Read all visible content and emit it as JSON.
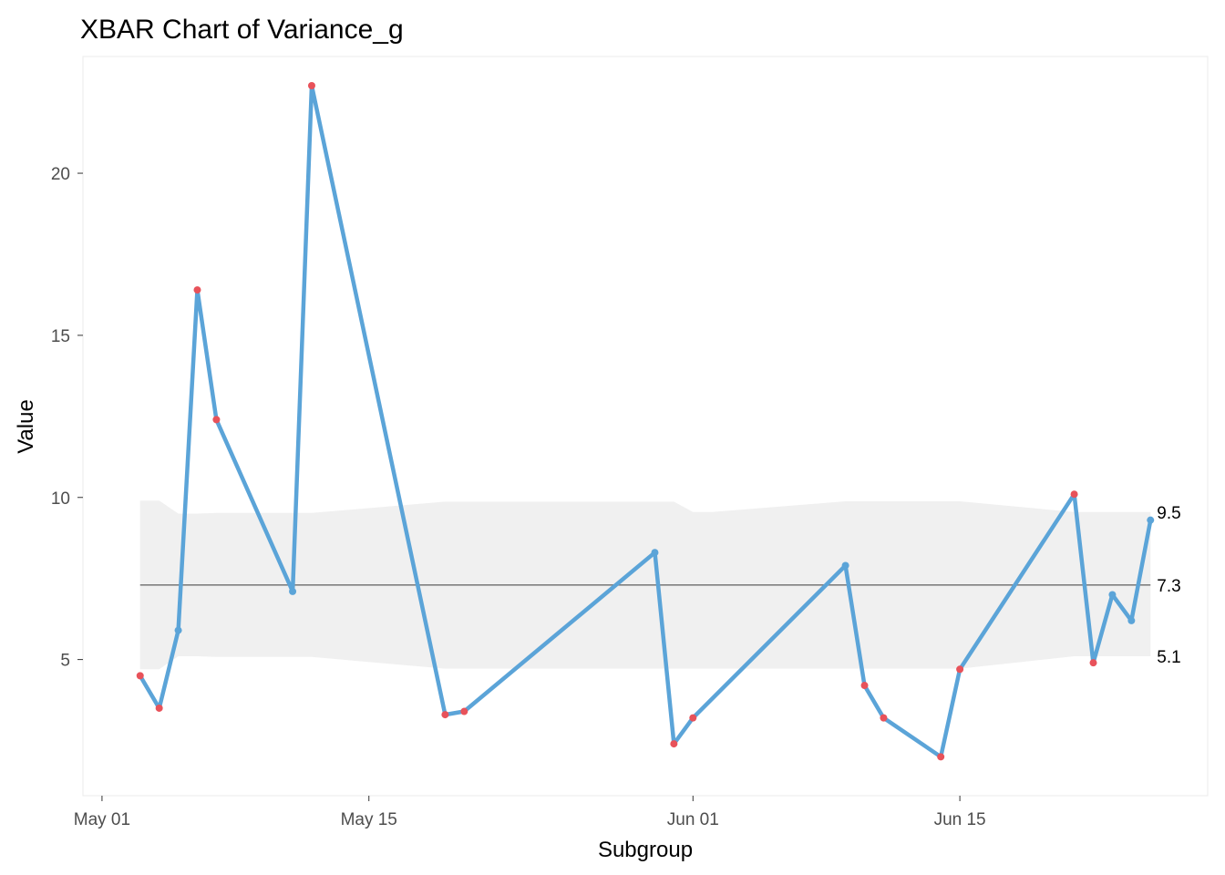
{
  "chart_data": {
    "type": "line",
    "title": "XBAR Chart of Variance_g",
    "xlabel": "Subgroup",
    "ylabel": "Value",
    "x_axis_type": "date",
    "xlim": [
      "2024-04-30",
      "2024-06-28"
    ],
    "ylim": [
      0.8,
      23.6
    ],
    "x_ticks": [
      {
        "date": "2024-05-01",
        "label": "May 01"
      },
      {
        "date": "2024-05-15",
        "label": "May 15"
      },
      {
        "date": "2024-06-01",
        "label": "Jun 01"
      },
      {
        "date": "2024-06-15",
        "label": "Jun 15"
      }
    ],
    "y_ticks": [
      {
        "value": 5,
        "label": "5"
      },
      {
        "value": 10,
        "label": "10"
      },
      {
        "value": 15,
        "label": "15"
      },
      {
        "value": 20,
        "label": "20"
      }
    ],
    "grid": false,
    "center_line": {
      "value": 7.3,
      "label": "7.3"
    },
    "ucl_label": "9.5",
    "lcl_label": "5.1",
    "control_limits": {
      "dates": [
        "2024-05-03",
        "2024-05-04",
        "2024-05-05",
        "2024-05-06",
        "2024-05-07",
        "2024-05-11",
        "2024-05-12",
        "2024-05-19",
        "2024-05-20",
        "2024-05-30",
        "2024-05-31",
        "2024-06-01",
        "2024-06-02",
        "2024-06-09",
        "2024-06-10",
        "2024-06-11",
        "2024-06-14",
        "2024-06-15",
        "2024-06-21",
        "2024-06-22",
        "2024-06-23",
        "2024-06-24",
        "2024-06-25"
      ],
      "ucl": [
        9.9,
        9.9,
        9.5,
        9.5,
        9.52,
        9.52,
        9.52,
        9.87,
        9.87,
        9.87,
        9.87,
        9.55,
        9.55,
        9.88,
        9.88,
        9.88,
        9.88,
        9.88,
        9.55,
        9.55,
        9.55,
        9.55,
        9.55
      ],
      "lcl": [
        4.7,
        4.7,
        5.1,
        5.1,
        5.08,
        5.08,
        5.08,
        4.72,
        4.72,
        4.72,
        4.72,
        4.72,
        4.72,
        4.72,
        4.72,
        4.72,
        4.72,
        4.72,
        5.1,
        5.1,
        5.1,
        5.1,
        5.1
      ]
    },
    "series": [
      {
        "x": [
          "2024-05-03",
          "2024-05-04",
          "2024-05-05",
          "2024-05-06",
          "2024-05-07",
          "2024-05-11",
          "2024-05-12",
          "2024-05-19",
          "2024-05-20",
          "2024-05-30",
          "2024-05-31",
          "2024-06-01",
          "2024-06-09",
          "2024-06-10",
          "2024-06-11",
          "2024-06-14",
          "2024-06-15",
          "2024-06-21",
          "2024-06-22",
          "2024-06-23",
          "2024-06-24",
          "2024-06-25"
        ],
        "values": [
          4.5,
          3.5,
          5.9,
          16.4,
          12.4,
          7.1,
          22.7,
          3.3,
          3.4,
          8.3,
          2.4,
          3.2,
          7.9,
          4.2,
          3.2,
          2.0,
          4.7,
          10.1,
          4.9,
          7.0,
          6.2,
          9.3
        ],
        "out_of_control": [
          true,
          true,
          false,
          true,
          true,
          false,
          true,
          true,
          true,
          false,
          true,
          true,
          false,
          true,
          true,
          true,
          true,
          true,
          true,
          false,
          false,
          false
        ]
      }
    ],
    "colors": {
      "line": "#5ba4d8",
      "in_control_point": "#5ba4d8",
      "out_of_control_point": "#e8525a",
      "limit_band": "#f0f0f0",
      "center_line": "#7f7f7f",
      "panel": "#ffffff"
    }
  }
}
